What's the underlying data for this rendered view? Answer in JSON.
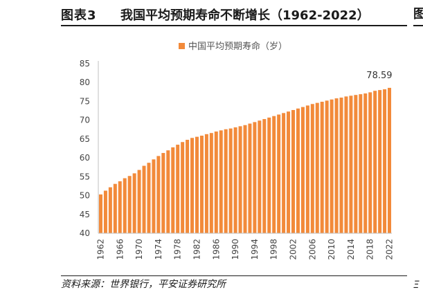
{
  "header": {
    "figure_no": "图表3",
    "title": "我国平均预期寿命不断增长（1962-2022）",
    "edge_fragment": "图",
    "edge_fragment_bottom": "Ξ"
  },
  "footer": {
    "source": "资料来源：世界银行，平安证券研究所"
  },
  "colors": {
    "bar": "#f28a3a",
    "axis": "#bfbfbf"
  },
  "chart_data": {
    "type": "bar",
    "legend_label": "中国平均预期寿命（岁）",
    "legend_position": "top-center",
    "grid": false,
    "ylim": [
      40,
      85
    ],
    "yticks": [
      40,
      45,
      50,
      55,
      60,
      65,
      70,
      75,
      80,
      85
    ],
    "xtick_labels": [
      "1962",
      "1966",
      "1970",
      "1974",
      "1978",
      "1982",
      "1986",
      "1990",
      "1994",
      "1998",
      "2002",
      "2006",
      "2010",
      "2014",
      "2018",
      "2022"
    ],
    "data_label": {
      "category": "2022",
      "text": "78.59"
    },
    "categories": [
      "1962",
      "1963",
      "1964",
      "1965",
      "1966",
      "1967",
      "1968",
      "1969",
      "1970",
      "1971",
      "1972",
      "1973",
      "1974",
      "1975",
      "1976",
      "1977",
      "1978",
      "1979",
      "1980",
      "1981",
      "1982",
      "1983",
      "1984",
      "1985",
      "1986",
      "1987",
      "1988",
      "1989",
      "1990",
      "1991",
      "1992",
      "1993",
      "1994",
      "1995",
      "1996",
      "1997",
      "1998",
      "1999",
      "2000",
      "2001",
      "2002",
      "2003",
      "2004",
      "2005",
      "2006",
      "2007",
      "2008",
      "2009",
      "2010",
      "2011",
      "2012",
      "2013",
      "2014",
      "2015",
      "2016",
      "2017",
      "2018",
      "2019",
      "2020",
      "2021",
      "2022"
    ],
    "values": [
      50.3,
      51.3,
      52.2,
      53.1,
      53.8,
      54.6,
      55.2,
      55.9,
      56.8,
      57.9,
      58.7,
      59.6,
      60.5,
      61.3,
      62.0,
      62.8,
      63.5,
      64.2,
      64.8,
      65.3,
      65.6,
      65.9,
      66.3,
      66.6,
      67.0,
      67.3,
      67.6,
      67.8,
      68.1,
      68.4,
      68.7,
      69.1,
      69.5,
      69.9,
      70.3,
      70.7,
      71.1,
      71.5,
      71.9,
      72.3,
      72.7,
      73.1,
      73.5,
      73.9,
      74.3,
      74.6,
      74.9,
      75.2,
      75.5,
      75.8,
      76.0,
      76.3,
      76.5,
      76.7,
      76.9,
      77.1,
      77.4,
      77.8,
      78.0,
      78.2,
      78.59
    ]
  }
}
